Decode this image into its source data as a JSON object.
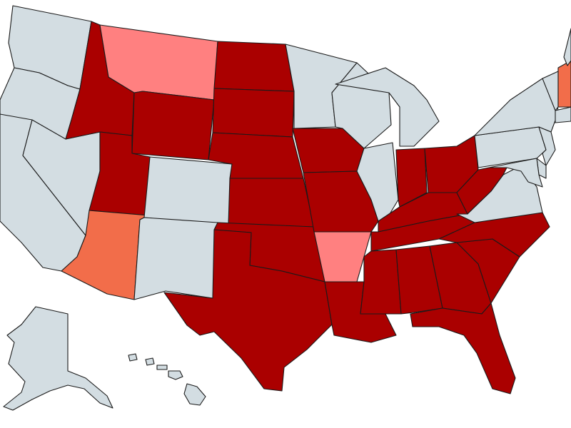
{
  "legend_colors": {
    "none": "#d3dde2",
    "dark_red": "#aa0000",
    "light_red": "#ff8080",
    "orange": "#f26d4a"
  },
  "states": {
    "WA": "none",
    "OR": "none",
    "CA": "none",
    "NV": "none",
    "ID": "dark_red",
    "MT": "light_red",
    "WY": "dark_red",
    "UT": "dark_red",
    "AZ": "orange",
    "CO": "none",
    "NM": "none",
    "ND": "dark_red",
    "SD": "dark_red",
    "NE": "dark_red",
    "KS": "dark_red",
    "OK": "dark_red",
    "TX": "dark_red",
    "MN": "none",
    "IA": "dark_red",
    "MO": "dark_red",
    "AR": "light_red",
    "LA": "dark_red",
    "WI": "none",
    "IL": "none",
    "MI": "none",
    "IN": "dark_red",
    "OH": "dark_red",
    "KY": "dark_red",
    "TN": "dark_red",
    "MS": "dark_red",
    "AL": "dark_red",
    "GA": "dark_red",
    "FL": "dark_red",
    "SC": "dark_red",
    "NC": "dark_red",
    "VA": "none",
    "WV": "dark_red",
    "PA": "none",
    "NY": "none",
    "NJ": "none",
    "DE": "none",
    "MD": "none",
    "NH": "orange",
    "VT": "none",
    "ME": "none",
    "MA": "none",
    "AK": "none",
    "HI": "none"
  }
}
